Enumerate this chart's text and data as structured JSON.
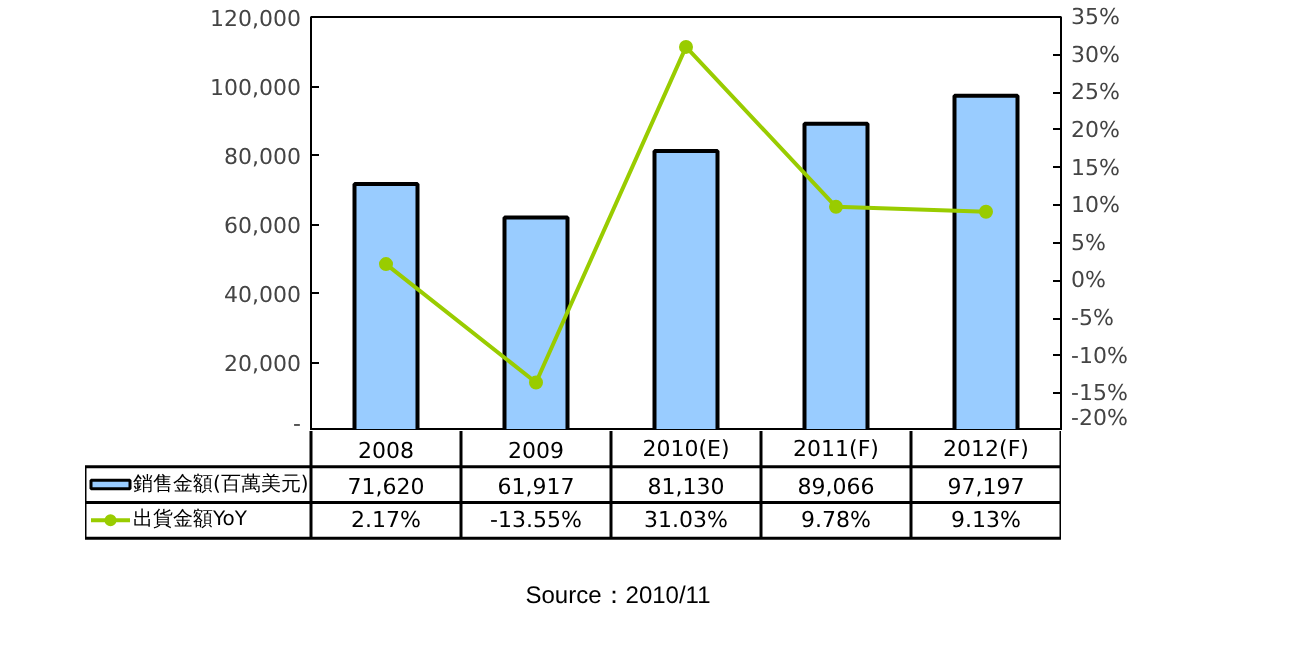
{
  "chart_data": {
    "type": "bar",
    "categories": [
      "2008",
      "2009",
      "2010(E)",
      "2011(F)",
      "2012(F)"
    ],
    "series": [
      {
        "name": "銷售金額(百萬美元)",
        "color": "#99ccff",
        "values": [
          71620,
          61917,
          81130,
          89066,
          97197
        ],
        "value_labels": [
          "71,620",
          "61,917",
          "81,130",
          "89,066",
          "97,197"
        ]
      },
      {
        "name": "出貨金額YoY",
        "type": "line",
        "axis": "y2",
        "color": "#99cc00",
        "marker": "circle",
        "values": [
          2.17,
          -13.55,
          31.03,
          9.78,
          9.13
        ],
        "value_labels": [
          "2.17%",
          "-13.55%",
          "31.03%",
          "9.78%",
          "9.13%"
        ]
      }
    ],
    "ylim": [
      0,
      120000
    ],
    "yticks": [
      {
        "value": 0,
        "label": "-"
      },
      {
        "value": 20000,
        "label": "20,000"
      },
      {
        "value": 40000,
        "label": "40,000"
      },
      {
        "value": 60000,
        "label": "60,000"
      },
      {
        "value": 80000,
        "label": "80,000"
      },
      {
        "value": 100000,
        "label": "100,000"
      },
      {
        "value": 120000,
        "label": "120,000"
      }
    ],
    "y2lim": [
      -20,
      35
    ],
    "y2ticks": [
      {
        "value": -20,
        "label": "-20%"
      },
      {
        "value": -15,
        "label": "-15%"
      },
      {
        "value": -10,
        "label": "-10%"
      },
      {
        "value": -5,
        "label": "-5%"
      },
      {
        "value": 0,
        "label": "0%"
      },
      {
        "value": 5,
        "label": "5%"
      },
      {
        "value": 10,
        "label": "10%"
      },
      {
        "value": 15,
        "label": "15%"
      },
      {
        "value": 20,
        "label": "20%"
      },
      {
        "value": 25,
        "label": "25%"
      },
      {
        "value": 30,
        "label": "30%"
      },
      {
        "value": 35,
        "label": "35%"
      }
    ],
    "grid": false,
    "legend": "bottom",
    "annotations": [
      "Source：2010/11"
    ]
  }
}
